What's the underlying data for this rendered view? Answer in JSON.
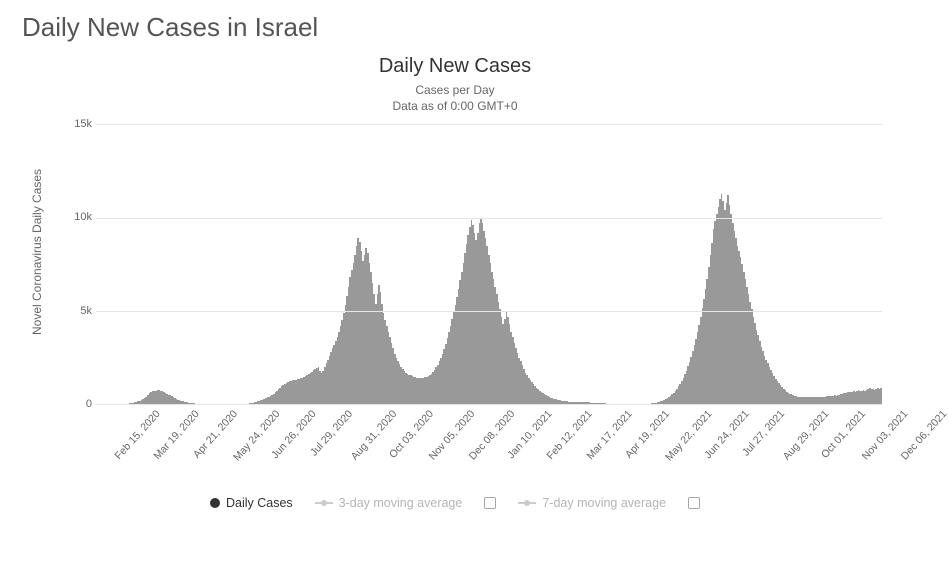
{
  "page": {
    "title": "Daily New Cases in Israel"
  },
  "chart": {
    "type": "bar",
    "title": "Daily New Cases",
    "subtitle_line1": "Cases per Day",
    "subtitle_line2": "Data as of 0:00 GMT+0",
    "yaxis_label": "Novel Coronavirus Daily Cases",
    "ylim": [
      0,
      15000
    ],
    "ytick_step": 5000,
    "yticks": [
      {
        "v": 0,
        "label": "0"
      },
      {
        "v": 5000,
        "label": "5k"
      },
      {
        "v": 10000,
        "label": "10k"
      },
      {
        "v": 15000,
        "label": "15k"
      }
    ],
    "bar_color": "#999999",
    "grid_color": "#e6e6e6",
    "background_color": "#ffffff",
    "tick_fontsize": 11,
    "title_fontsize": 20,
    "subtitle_fontsize": 12,
    "xticks": [
      "Feb 15, 2020",
      "Mar 19, 2020",
      "Apr 21, 2020",
      "May 24, 2020",
      "Jun 26, 2020",
      "Jul 29, 2020",
      "Aug 31, 2020",
      "Oct 03, 2020",
      "Nov 05, 2020",
      "Dec 08, 2020",
      "Jan 10, 2021",
      "Feb 12, 2021",
      "Mar 17, 2021",
      "Apr 19, 2021",
      "May 22, 2021",
      "Jun 24, 2021",
      "Jul 27, 2021",
      "Aug 29, 2021",
      "Oct 01, 2021",
      "Nov 03, 2021",
      "Dec 06, 2021"
    ],
    "values": [
      0,
      0,
      0,
      0,
      0,
      0,
      0,
      0,
      0,
      0,
      0,
      0,
      0,
      0,
      0,
      0,
      0,
      0,
      0,
      20,
      40,
      60,
      80,
      90,
      110,
      140,
      170,
      200,
      250,
      300,
      350,
      400,
      500,
      600,
      650,
      700,
      720,
      740,
      750,
      760,
      740,
      700,
      650,
      600,
      560,
      520,
      480,
      430,
      380,
      330,
      290,
      250,
      220,
      190,
      160,
      140,
      120,
      105,
      90,
      78,
      66,
      55,
      47,
      40,
      35,
      31,
      28,
      25,
      22,
      20,
      18,
      16,
      14,
      13,
      12,
      11,
      10,
      10,
      10,
      10,
      11,
      12,
      14,
      16,
      18,
      20,
      22,
      24,
      26,
      28,
      30,
      32,
      34,
      36,
      40,
      45,
      55,
      70,
      90,
      110,
      130,
      160,
      190,
      220,
      260,
      300,
      340,
      380,
      420,
      470,
      520,
      580,
      650,
      720,
      800,
      880,
      960,
      1020,
      1080,
      1140,
      1190,
      1230,
      1260,
      1280,
      1300,
      1320,
      1340,
      1370,
      1400,
      1440,
      1480,
      1530,
      1580,
      1640,
      1700,
      1760,
      1820,
      1880,
      1940,
      2000,
      1800,
      1700,
      1800,
      2000,
      2200,
      2400,
      2600,
      2800,
      3000,
      3200,
      3400,
      3600,
      3900,
      4200,
      4500,
      4900,
      5300,
      5800,
      6300,
      6800,
      7200,
      7600,
      8000,
      8500,
      8900,
      8700,
      8200,
      7700,
      8000,
      8400,
      8100,
      7600,
      7100,
      6500,
      5900,
      5400,
      5900,
      6400,
      6000,
      5400,
      4900,
      4500,
      4200,
      3900,
      3600,
      3300,
      3000,
      2700,
      2500,
      2300,
      2150,
      2000,
      1900,
      1800,
      1700,
      1650,
      1600,
      1560,
      1520,
      1490,
      1460,
      1440,
      1430,
      1420,
      1420,
      1430,
      1450,
      1480,
      1520,
      1580,
      1650,
      1740,
      1850,
      1980,
      2130,
      2300,
      2500,
      2720,
      2980,
      3260,
      3560,
      3880,
      4220,
      4580,
      4950,
      5350,
      5750,
      6200,
      6650,
      7100,
      7600,
      8100,
      8600,
      9100,
      9500,
      9900,
      9600,
      9200,
      8800,
      9200,
      9700,
      10000,
      9700,
      9300,
      8900,
      8500,
      8000,
      7600,
      7100,
      6700,
      6300,
      5900,
      5500,
      5100,
      4700,
      4300,
      4600,
      5000,
      4700,
      4300,
      3900,
      3600,
      3300,
      3000,
      2750,
      2500,
      2300,
      2100,
      1900,
      1700,
      1550,
      1400,
      1300,
      1200,
      1100,
      1000,
      900,
      820,
      740,
      670,
      600,
      540,
      490,
      440,
      400,
      360,
      325,
      295,
      270,
      248,
      228,
      210,
      194,
      180,
      168,
      158,
      150,
      144,
      140,
      137,
      135,
      133,
      131,
      129,
      126,
      123,
      119,
      114,
      109,
      103,
      97,
      91,
      85,
      79,
      73,
      67,
      62,
      57,
      52,
      48,
      44,
      40,
      36,
      33,
      30,
      27,
      25,
      23,
      21,
      19,
      17,
      16,
      15,
      14,
      13,
      12,
      12,
      12,
      12,
      13,
      14,
      16,
      18,
      21,
      25,
      30,
      36,
      44,
      54,
      66,
      80,
      97,
      118,
      143,
      172,
      206,
      245,
      290,
      342,
      400,
      468,
      545,
      632,
      730,
      840,
      964,
      1100,
      1252,
      1420,
      1606,
      1810,
      2035,
      2280,
      2548,
      2840,
      3156,
      3500,
      3870,
      4270,
      4700,
      5160,
      5650,
      6180,
      6740,
      7340,
      7980,
      8660,
      9380,
      9800,
      10200,
      10600,
      11000,
      11250,
      10900,
      10400,
      10800,
      11200,
      10700,
      10200,
      9700,
      9300,
      8900,
      8500,
      8200,
      7900,
      7500,
      7100,
      6700,
      6300,
      5900,
      5500,
      5100,
      4700,
      4350,
      4000,
      3700,
      3400,
      3100,
      2850,
      2600,
      2400,
      2200,
      2000,
      1820,
      1660,
      1500,
      1360,
      1240,
      1120,
      1020,
      920,
      840,
      760,
      690,
      630,
      580,
      530,
      490,
      460,
      440,
      420,
      410,
      405,
      400,
      395,
      390,
      388,
      386,
      385,
      385,
      386,
      388,
      391,
      395,
      400,
      406,
      413,
      421,
      430,
      440,
      451,
      463,
      476,
      490,
      470,
      490,
      510,
      530,
      560,
      590,
      620,
      650,
      690,
      640,
      680,
      720,
      670,
      710,
      760,
      700,
      740,
      780,
      730,
      770,
      820,
      860,
      800,
      840,
      780,
      820,
      870,
      810,
      860
    ]
  },
  "legend": {
    "items": [
      {
        "id": "daily",
        "label": "Daily Cases",
        "active": true,
        "color": "#333333",
        "type": "dot",
        "checkbox": false
      },
      {
        "id": "ma3",
        "label": "3-day moving average",
        "active": false,
        "color": "#cccccc",
        "type": "line",
        "checkbox": true
      },
      {
        "id": "ma7",
        "label": "7-day moving average",
        "active": false,
        "color": "#cccccc",
        "type": "line",
        "checkbox": true
      }
    ]
  }
}
